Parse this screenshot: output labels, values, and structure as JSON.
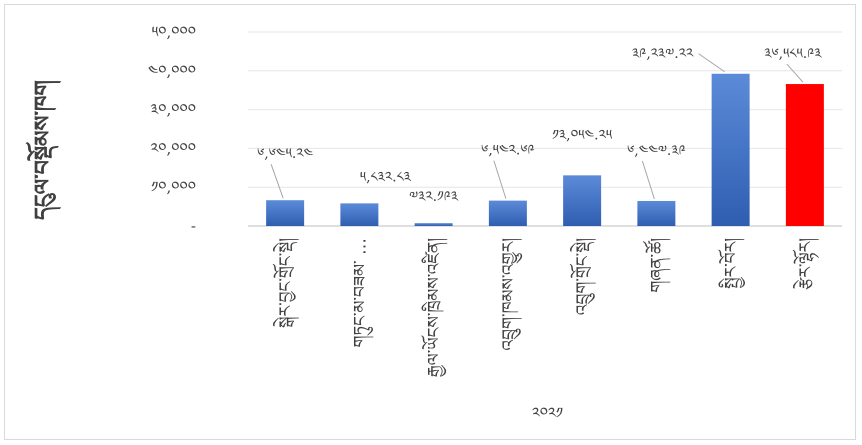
{
  "chart_data": {
    "type": "bar",
    "ylabel": "དངུལ་བསྡོམས་ཁག",
    "ylim": [
      0,
      50000
    ],
    "yticks": [
      {
        "value": 0,
        "label": "-"
      },
      {
        "value": 10000,
        "label": "༡༠,༠༠༠"
      },
      {
        "value": 20000,
        "label": "༢༠,༠༠༠"
      },
      {
        "value": 30000,
        "label": "༣༠,༠༠༠"
      },
      {
        "value": 40000,
        "label": "༤༠,༠༠༠"
      },
      {
        "value": 50000,
        "label": "༥༠,༠༠༠"
      }
    ],
    "grid": true,
    "categories": [
      "སྒེར་བྱང་གྲོང་སྡེ།",
      "གཏུང་མ་བཟམ་ …",
      "རྒྱལ་ཡོངས་ཁྲིམས་འཛིན།",
      "འབྲུག་ཁམས་འགྱུར།",
      "འབྲུག་གྲོང་སྡེ།",
      "གཞན་ཚོ།",
      "སྤྱིར་བོར།",
      "རྩེར་ལྷོར།"
    ],
    "values": [
      6645.24,
      5832.83,
      732.193,
      6542.69,
      13054.25,
      6447.39,
      39237.22,
      36585.93
    ],
    "data_labels": [
      "༦,༦༤༥.༢༤",
      "༥,༨༣༢.༨༣",
      "༧༣༢.༡༩༣",
      "༦,༥༤༢.༦༩",
      "༡༣,༠༥༤.༢༥",
      "༦,༤༤༧.༣༩",
      "༣༩,༢༣༧.༢༢",
      "༣༦,༥༨༥.༩༣"
    ],
    "colors": [
      "#4472c4",
      "#4472c4",
      "#4472c4",
      "#4472c4",
      "#4472c4",
      "#4472c4",
      "#4472c4",
      "#ff0000"
    ],
    "footnote": "༢༠༢༡"
  }
}
